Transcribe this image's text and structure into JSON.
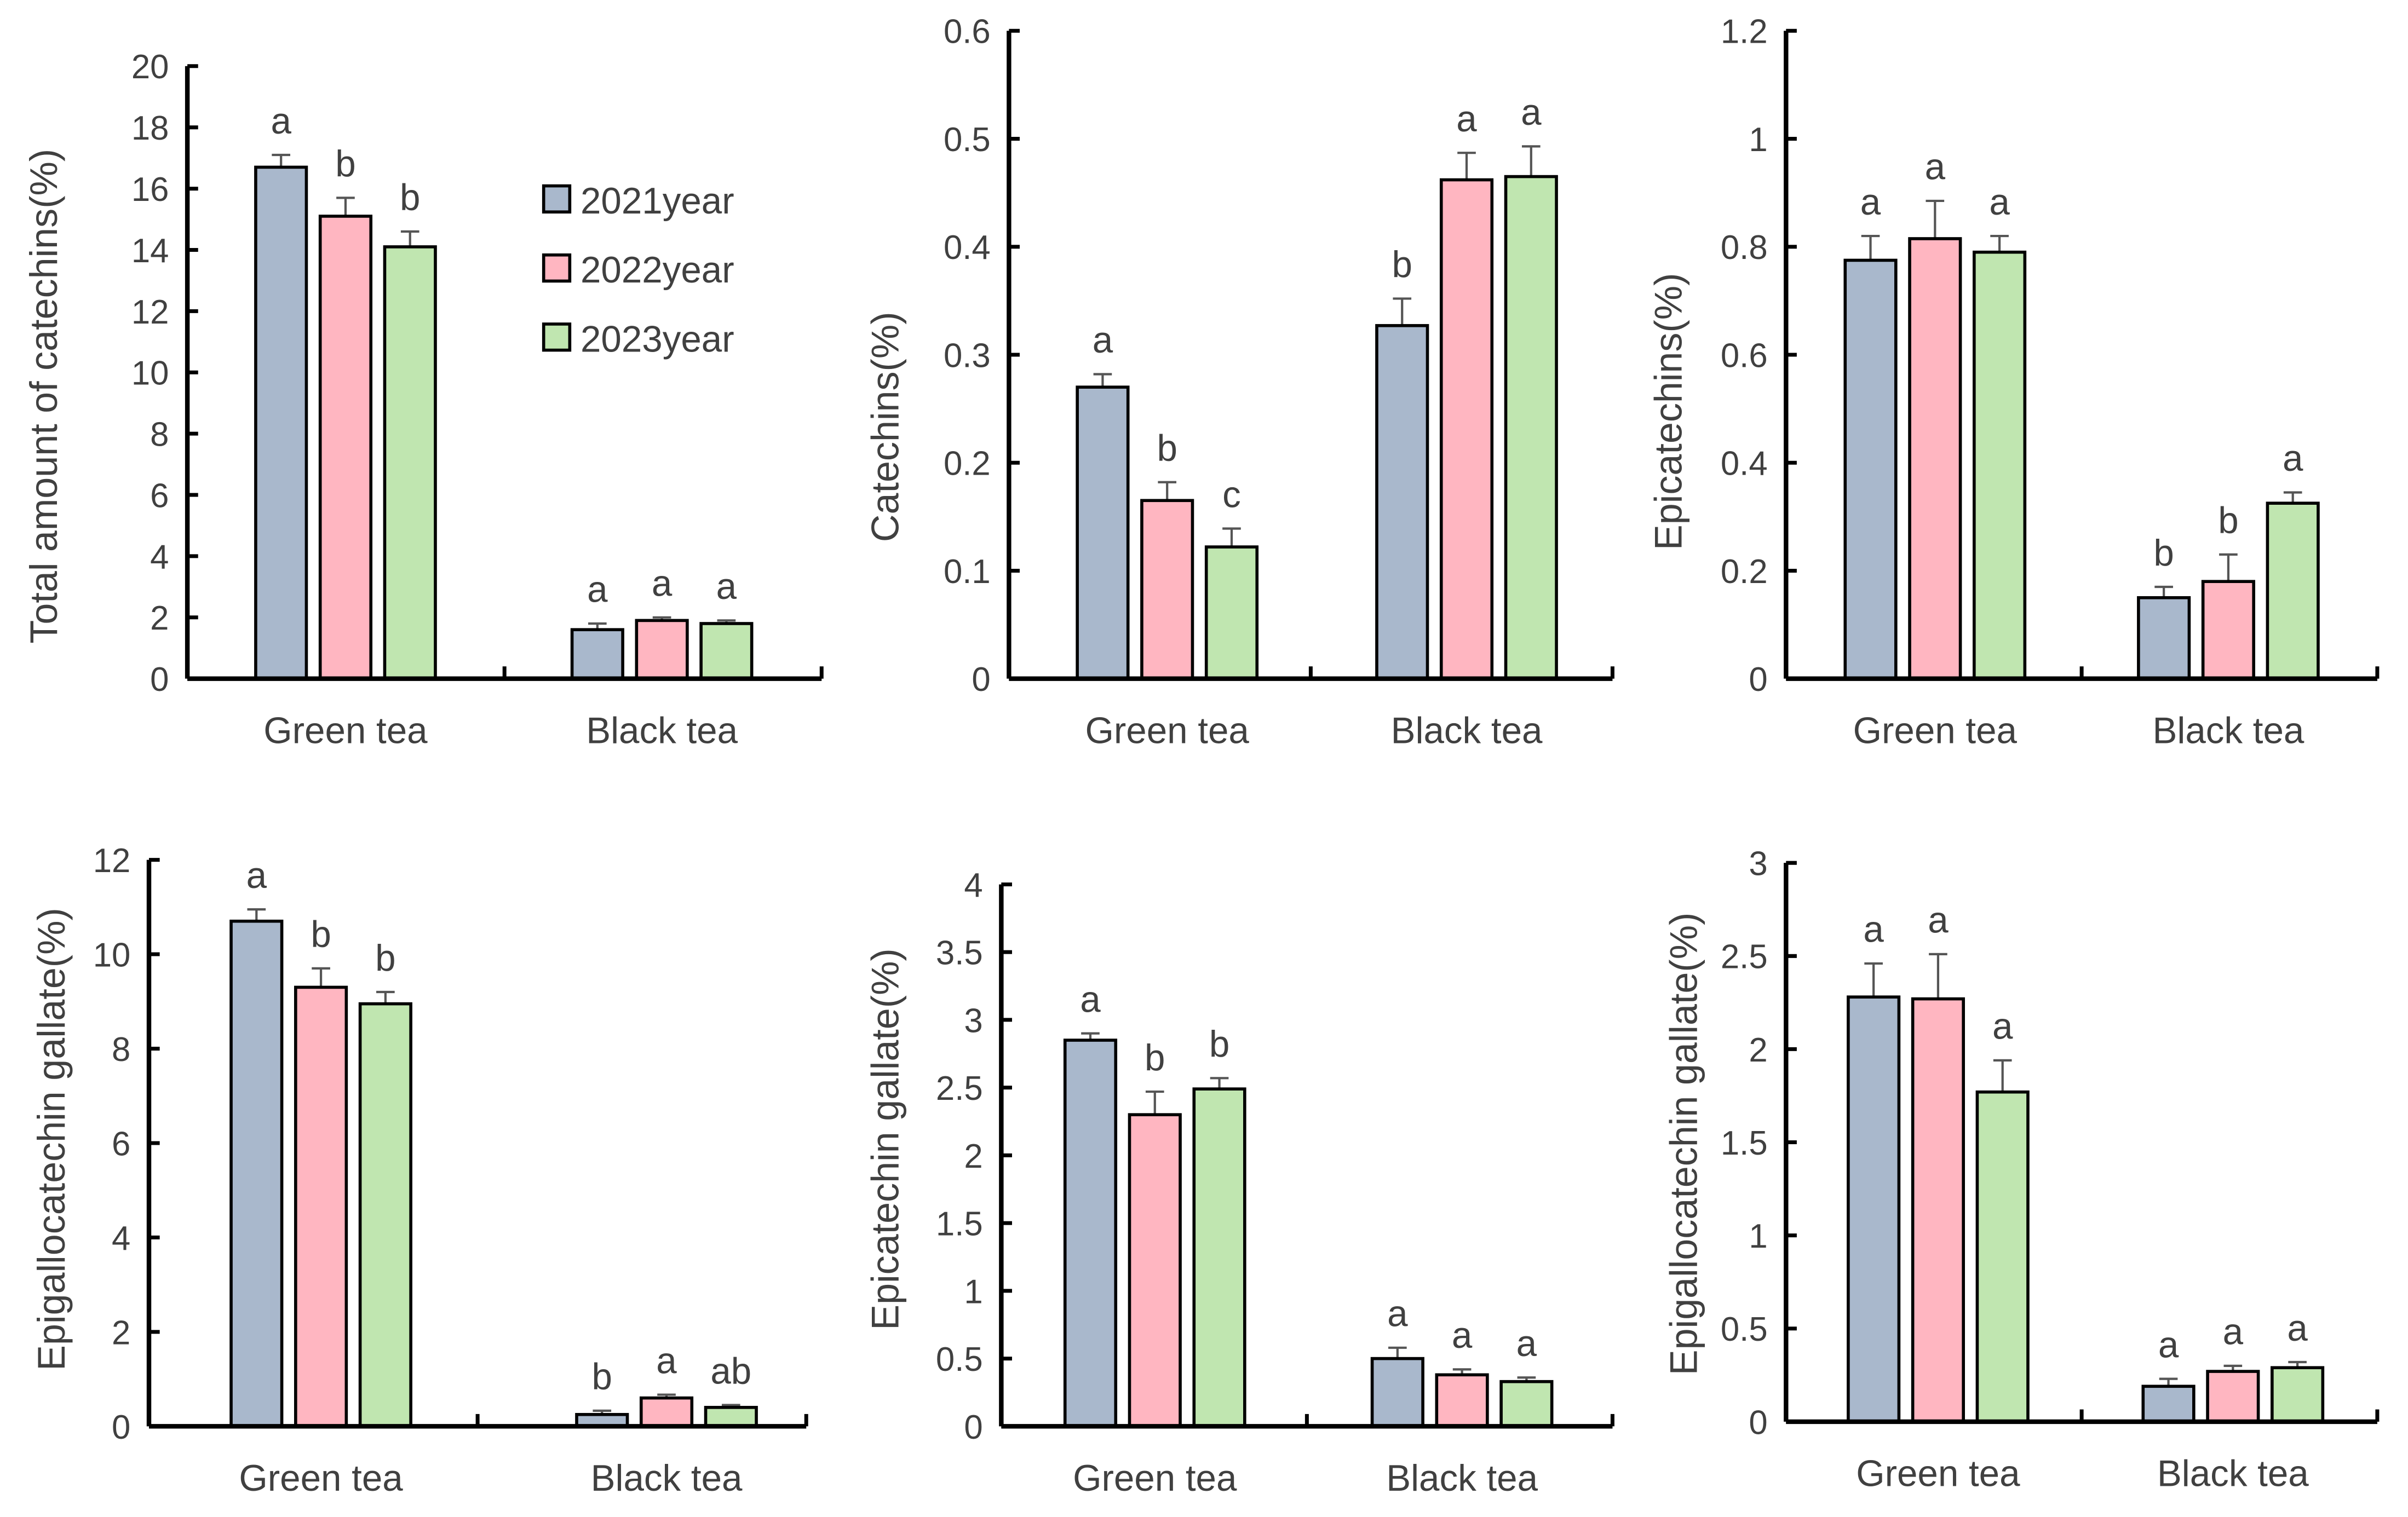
{
  "colors": {
    "2021year": "#A9B8CC",
    "2022year": "#FFB6C1",
    "2023year": "#C0E6B0",
    "axis": "#000000",
    "text": "#404040"
  },
  "legend": {
    "items": [
      "2021year",
      "2022year",
      "2023year"
    ],
    "placement": "inside top-right of first panel"
  },
  "chart_data": [
    {
      "type": "bar",
      "ylabel": "Total amount of catechins(%)",
      "categories": [
        "Green tea",
        "Black tea"
      ],
      "ylim": [
        0,
        20
      ],
      "yticks": [
        0,
        2,
        4,
        6,
        8,
        10,
        12,
        14,
        16,
        18,
        20
      ],
      "ytick_labels": [
        "0",
        "2",
        "4",
        "6",
        "8",
        "10",
        "12",
        "14",
        "16",
        "18",
        "20"
      ],
      "series": [
        {
          "name": "2021year",
          "values": [
            16.7,
            1.6
          ],
          "errors": [
            0.4,
            0.2
          ],
          "letters": [
            "a",
            "a"
          ]
        },
        {
          "name": "2022year",
          "values": [
            15.1,
            1.9
          ],
          "errors": [
            0.6,
            0.1
          ],
          "letters": [
            "b",
            "a"
          ]
        },
        {
          "name": "2023year",
          "values": [
            14.1,
            1.8
          ],
          "errors": [
            0.5,
            0.1
          ],
          "letters": [
            "b",
            "a"
          ]
        }
      ]
    },
    {
      "type": "bar",
      "ylabel": "Catechins(%)",
      "categories": [
        "Green tea",
        "Black tea"
      ],
      "ylim": [
        0,
        0.6
      ],
      "yticks": [
        0,
        0.1,
        0.2,
        0.3,
        0.4,
        0.5,
        0.6
      ],
      "ytick_labels": [
        "0",
        "0.1",
        "0.2",
        "0.3",
        "0.4",
        "0.5",
        "0.6"
      ],
      "series": [
        {
          "name": "2021year",
          "values": [
            0.27,
            0.327
          ],
          "errors": [
            0.012,
            0.025
          ],
          "letters": [
            "a",
            "b"
          ]
        },
        {
          "name": "2022year",
          "values": [
            0.165,
            0.462
          ],
          "errors": [
            0.017,
            0.025
          ],
          "letters": [
            "b",
            "a"
          ]
        },
        {
          "name": "2023year",
          "values": [
            0.122,
            0.465
          ],
          "errors": [
            0.017,
            0.028
          ],
          "letters": [
            "c",
            "a"
          ]
        }
      ]
    },
    {
      "type": "bar",
      "ylabel": "Epicatechins(%)",
      "categories": [
        "Green tea",
        "Black tea"
      ],
      "ylim": [
        0,
        1.2
      ],
      "yticks": [
        0,
        0.2,
        0.4,
        0.6,
        0.8,
        1,
        1.2
      ],
      "ytick_labels": [
        "0",
        "0.2",
        "0.4",
        "0.6",
        "0.8",
        "1",
        "1.2"
      ],
      "series": [
        {
          "name": "2021year",
          "values": [
            0.775,
            0.15
          ],
          "errors": [
            0.045,
            0.02
          ],
          "letters": [
            "a",
            "b"
          ]
        },
        {
          "name": "2022year",
          "values": [
            0.815,
            0.18
          ],
          "errors": [
            0.07,
            0.05
          ],
          "letters": [
            "a",
            "b"
          ]
        },
        {
          "name": "2023year",
          "values": [
            0.79,
            0.325
          ],
          "errors": [
            0.03,
            0.02
          ],
          "letters": [
            "a",
            "a"
          ]
        }
      ]
    },
    {
      "type": "bar",
      "ylabel": "Epigallocatechin gallate(%)",
      "categories": [
        "Green tea",
        "Black tea"
      ],
      "ylim": [
        0,
        12
      ],
      "yticks": [
        0,
        2,
        4,
        6,
        8,
        10,
        12
      ],
      "ytick_labels": [
        "0",
        "2",
        "4",
        "6",
        "8",
        "10",
        "12"
      ],
      "series": [
        {
          "name": "2021year",
          "values": [
            10.7,
            0.25
          ],
          "errors": [
            0.25,
            0.08
          ],
          "letters": [
            "a",
            "b"
          ]
        },
        {
          "name": "2022year",
          "values": [
            9.3,
            0.6
          ],
          "errors": [
            0.4,
            0.07
          ],
          "letters": [
            "b",
            "a"
          ]
        },
        {
          "name": "2023year",
          "values": [
            8.95,
            0.4
          ],
          "errors": [
            0.25,
            0.05
          ],
          "letters": [
            "b",
            "ab"
          ]
        }
      ]
    },
    {
      "type": "bar",
      "ylabel": "Epicatechin gallate(%)",
      "categories": [
        "Green tea",
        "Black tea"
      ],
      "ylim": [
        0,
        4
      ],
      "yticks": [
        0,
        0.5,
        1,
        1.5,
        2,
        2.5,
        3,
        3.5,
        4
      ],
      "ytick_labels": [
        "0",
        "0.5",
        "1",
        "1.5",
        "2",
        "2.5",
        "3",
        "3.5",
        "4"
      ],
      "series": [
        {
          "name": "2021year",
          "values": [
            2.85,
            0.5
          ],
          "errors": [
            0.05,
            0.08
          ],
          "letters": [
            "a",
            "a"
          ]
        },
        {
          "name": "2022year",
          "values": [
            2.3,
            0.38
          ],
          "errors": [
            0.17,
            0.04
          ],
          "letters": [
            "b",
            "a"
          ]
        },
        {
          "name": "2023year",
          "values": [
            2.49,
            0.33
          ],
          "errors": [
            0.08,
            0.03
          ],
          "letters": [
            "b",
            "a"
          ]
        }
      ]
    },
    {
      "type": "bar",
      "ylabel": "Epigallocatechin gallate(%)",
      "categories": [
        "Green tea",
        "Black tea"
      ],
      "ylim": [
        0,
        3
      ],
      "yticks": [
        0,
        0.5,
        1,
        1.5,
        2,
        2.5,
        3
      ],
      "ytick_labels": [
        "0",
        "0.5",
        "1",
        "1.5",
        "2",
        "2.5",
        "3"
      ],
      "series": [
        {
          "name": "2021year",
          "values": [
            2.28,
            0.19
          ],
          "errors": [
            0.18,
            0.04
          ],
          "letters": [
            "a",
            "a"
          ]
        },
        {
          "name": "2022year",
          "values": [
            2.27,
            0.27
          ],
          "errors": [
            0.24,
            0.03
          ],
          "letters": [
            "a",
            "a"
          ]
        },
        {
          "name": "2023year",
          "values": [
            1.77,
            0.29
          ],
          "errors": [
            0.17,
            0.03
          ],
          "letters": [
            "a",
            "a"
          ]
        }
      ]
    }
  ]
}
